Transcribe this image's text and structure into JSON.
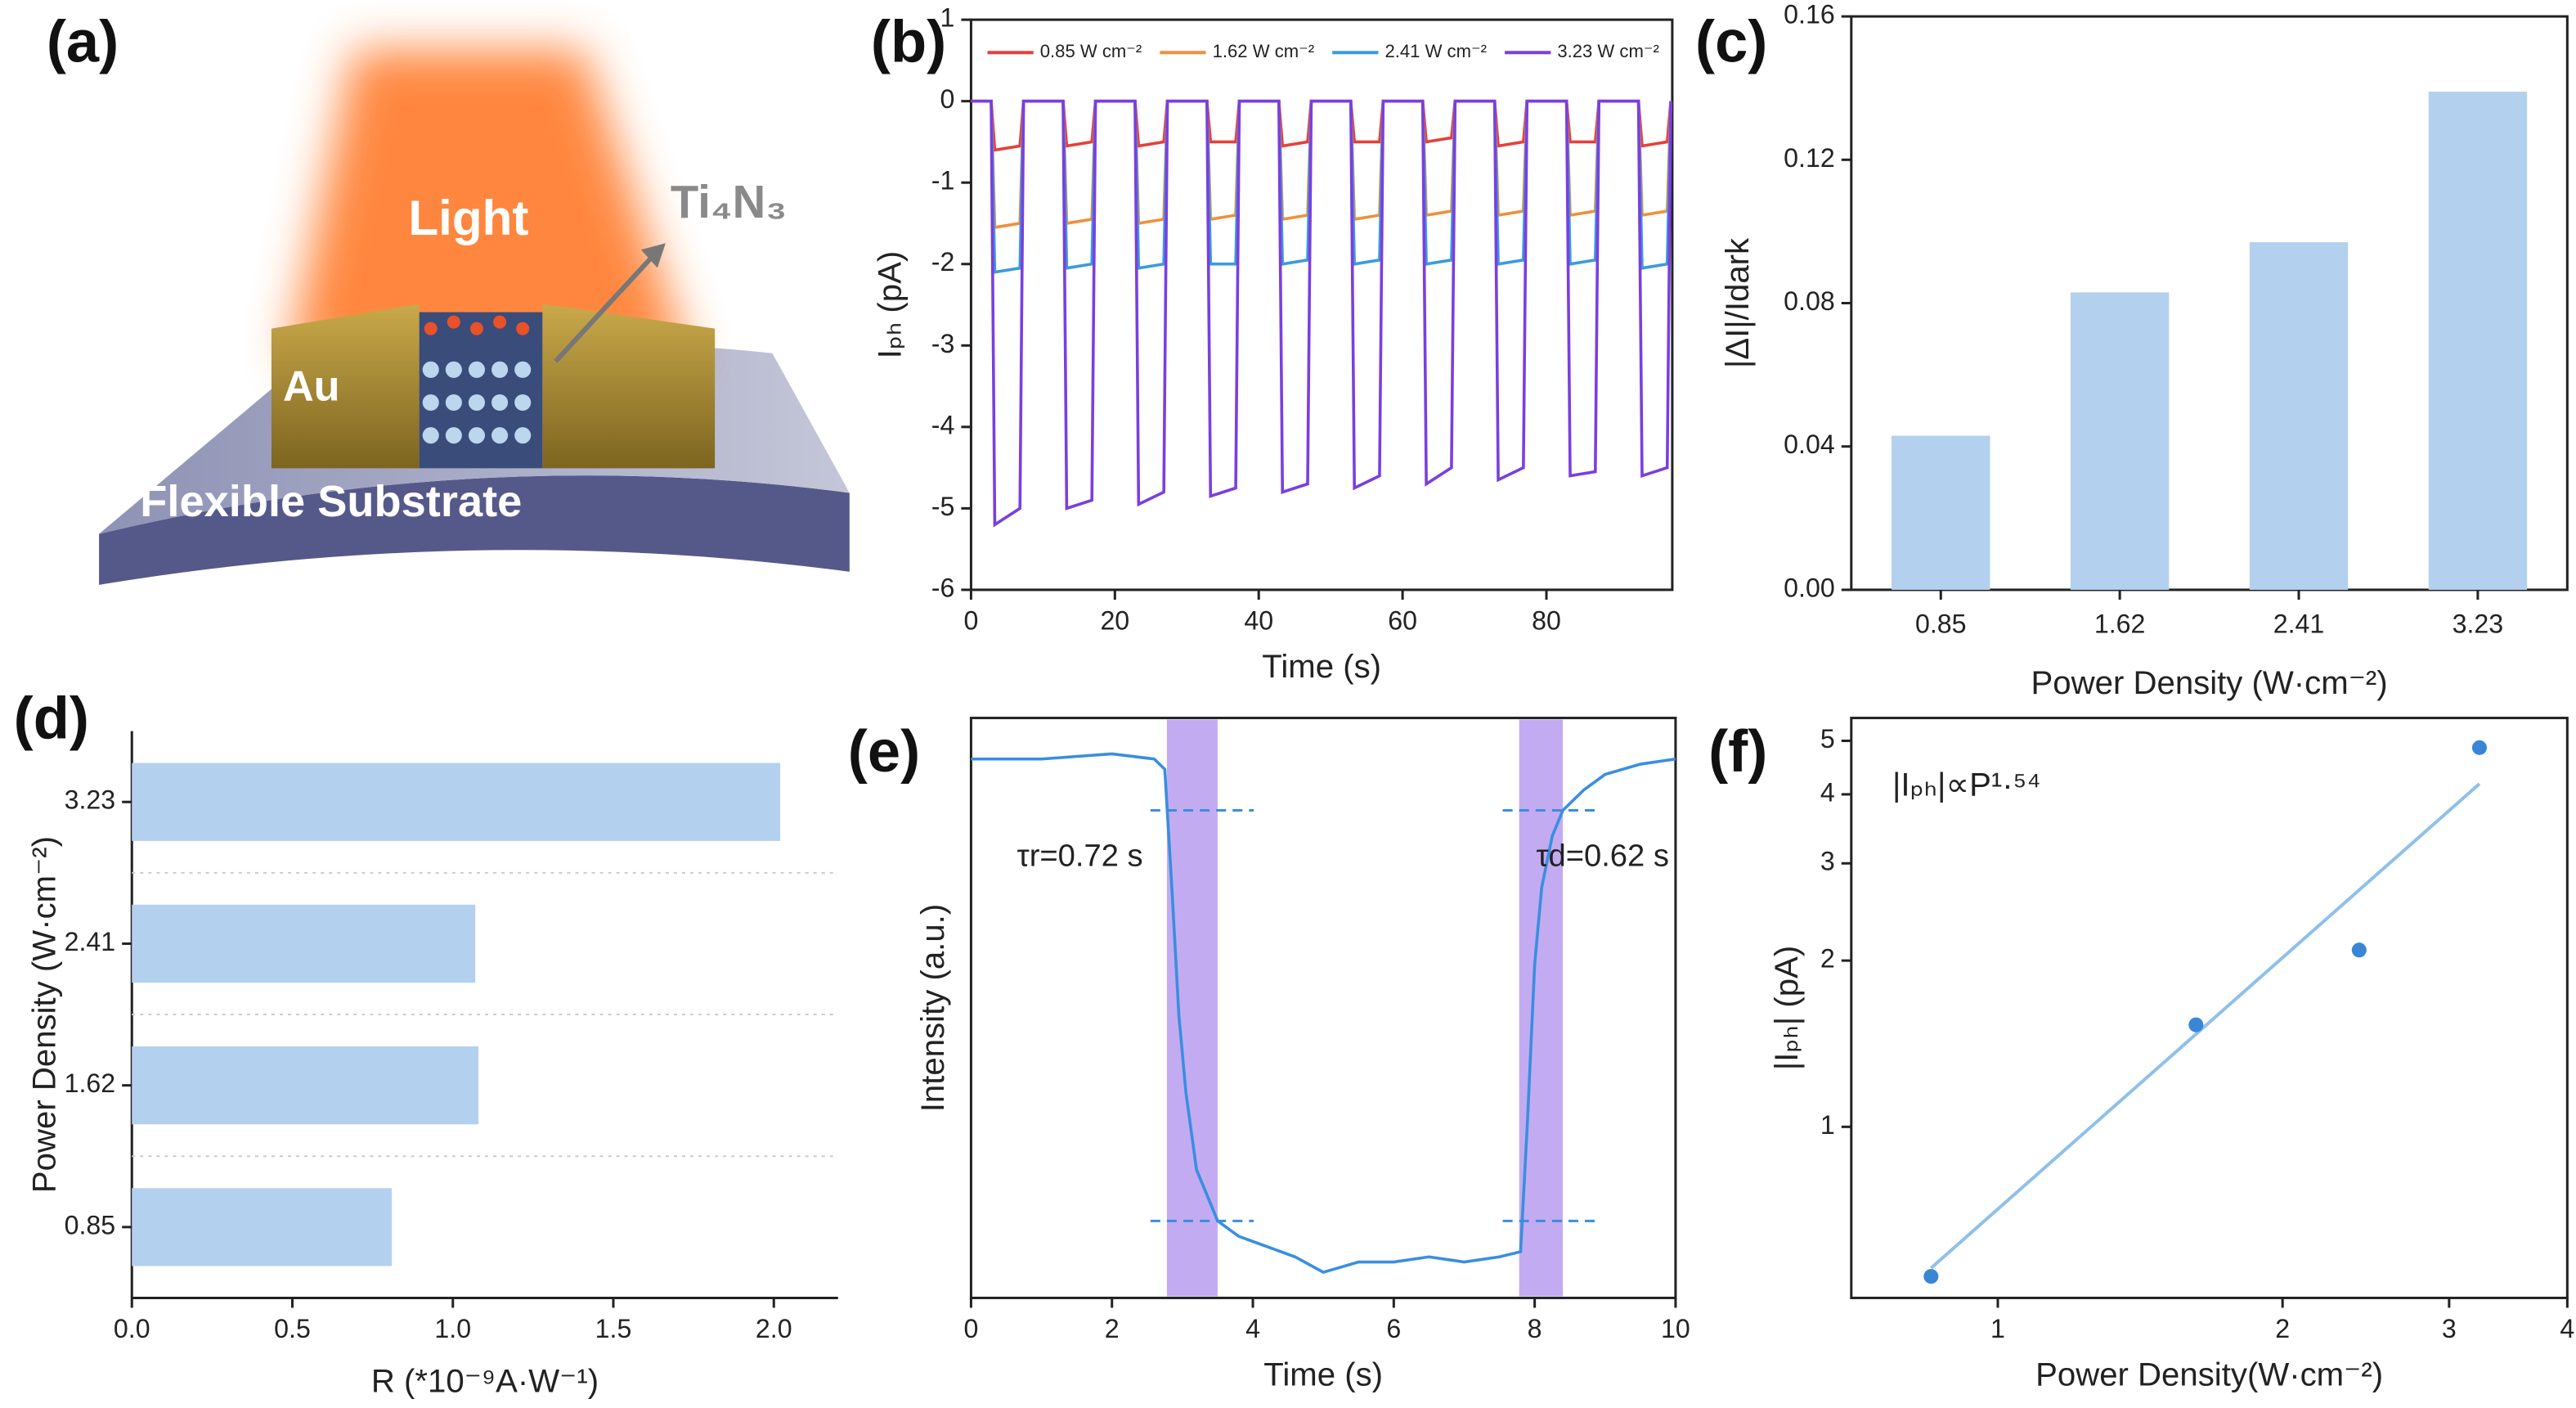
{
  "chart_data": [
    {
      "type": "diagram",
      "label": "(a)",
      "texts": [
        "Light",
        "Ti₄N₃",
        "Au",
        "Flexible Substrate"
      ]
    },
    {
      "type": "line",
      "label": "(b)",
      "x_label": "Time (s)",
      "y_label": "Iₚₕ (pA)",
      "x": [
        0,
        2.8,
        3.3,
        6.8,
        7.3,
        12.8,
        13.3,
        16.8,
        17.3,
        22.8,
        23.3,
        26.8,
        27.3,
        32.8,
        33.3,
        36.8,
        37.3,
        42.8,
        43.3,
        46.8,
        47.3,
        52.8,
        53.3,
        56.8,
        57.3,
        62.8,
        63.3,
        66.8,
        67.3,
        72.8,
        73.3,
        76.8,
        77.3,
        82.8,
        83.3,
        86.8,
        87.3,
        92.8,
        93.3,
        96.8,
        97.3
      ],
      "series": [
        {
          "name": "0.85 W cm⁻²",
          "color": "#e5403b",
          "values": [
            0,
            0,
            -0.6,
            -0.55,
            0,
            0,
            -0.55,
            -0.5,
            0,
            0,
            -0.55,
            -0.5,
            0,
            0,
            -0.5,
            -0.5,
            0,
            0,
            -0.55,
            -0.5,
            0,
            0,
            -0.5,
            -0.5,
            0,
            0,
            -0.5,
            -0.45,
            0,
            0,
            -0.55,
            -0.5,
            0,
            0,
            -0.5,
            -0.5,
            0,
            0,
            -0.55,
            -0.5,
            0
          ]
        },
        {
          "name": "1.62 W cm⁻²",
          "color": "#f0903a",
          "values": [
            0,
            0,
            -1.55,
            -1.5,
            0,
            0,
            -1.5,
            -1.45,
            0,
            0,
            -1.5,
            -1.45,
            0,
            0,
            -1.45,
            -1.4,
            0,
            0,
            -1.45,
            -1.4,
            0,
            0,
            -1.45,
            -1.4,
            0,
            0,
            -1.4,
            -1.35,
            0,
            0,
            -1.4,
            -1.35,
            0,
            0,
            -1.4,
            -1.35,
            0,
            0,
            -1.4,
            -1.35,
            0
          ]
        },
        {
          "name": "2.41 W cm⁻²",
          "color": "#3a9ae0",
          "values": [
            0,
            0,
            -2.1,
            -2.05,
            0,
            0,
            -2.05,
            -2.0,
            0,
            0,
            -2.05,
            -2.0,
            0,
            0,
            -2.0,
            -2.0,
            0,
            0,
            -2.0,
            -1.95,
            0,
            0,
            -2.0,
            -1.95,
            0,
            0,
            -2.0,
            -1.95,
            0,
            0,
            -2.0,
            -1.95,
            0,
            0,
            -2.0,
            -1.95,
            0,
            0,
            -2.05,
            -2.0,
            0
          ]
        },
        {
          "name": "3.23 W cm⁻²",
          "color": "#7a3fe0",
          "values": [
            0,
            0,
            -5.2,
            -5.0,
            0,
            0,
            -5.0,
            -4.9,
            0,
            0,
            -4.95,
            -4.8,
            0,
            0,
            -4.85,
            -4.75,
            0,
            0,
            -4.8,
            -4.7,
            0,
            0,
            -4.75,
            -4.6,
            0,
            0,
            -4.7,
            -4.5,
            0,
            0,
            -4.65,
            -4.5,
            0,
            0,
            -4.6,
            -4.55,
            0,
            0,
            -4.6,
            -4.5,
            0
          ]
        }
      ],
      "xlim": [
        0,
        97.5
      ],
      "xticks": [
        0,
        20,
        40,
        60,
        80
      ],
      "ylim": [
        -6,
        1
      ],
      "yticks": [
        -6,
        -5,
        -4,
        -3,
        -2,
        -1,
        0,
        1
      ]
    },
    {
      "type": "bar",
      "label": "(c)",
      "x_label": "Power Density (W·cm⁻²)",
      "y_label": "|ΔI|/Idark",
      "categories": [
        "0.85",
        "1.62",
        "2.41",
        "3.23"
      ],
      "values": [
        0.043,
        0.083,
        0.097,
        0.139
      ],
      "color": "#b3d1ee",
      "ylim": [
        0,
        0.16
      ],
      "yticks": [
        {
          "value": 0,
          "label": "0.00"
        },
        0.04,
        0.08,
        0.12,
        0.16
      ]
    },
    {
      "type": "hbar",
      "label": "(d)",
      "x_label": "R (*10⁻⁹A·W⁻¹)",
      "y_label": "Power Density (W·cm⁻²)",
      "categories": [
        "0.85",
        "1.62",
        "2.41",
        "3.23"
      ],
      "values": [
        0.81,
        1.08,
        1.07,
        2.02
      ],
      "color": "#b3d1ee",
      "xlim": [
        0,
        2.2
      ],
      "xticks": [
        {
          "value": 0,
          "label": "0.0"
        },
        0.5,
        {
          "value": 1,
          "label": "1.0"
        },
        1.5,
        {
          "value": 2,
          "label": "2.0"
        }
      ]
    },
    {
      "type": "line",
      "label": "(e)",
      "x_label": "Time (s)",
      "y_label": "Intensity (a.u.)",
      "x": [
        0,
        1,
        2,
        2.6,
        2.75,
        2.85,
        2.95,
        3.05,
        3.2,
        3.5,
        3.8,
        4.2,
        4.6,
        5,
        5.5,
        6,
        6.5,
        7,
        7.5,
        7.8,
        7.9,
        8.0,
        8.1,
        8.25,
        8.4,
        8.7,
        9,
        9.5,
        10
      ],
      "values": [
        1.0,
        1.0,
        1.01,
        1.0,
        0.98,
        0.75,
        0.5,
        0.35,
        0.2,
        0.1,
        0.07,
        0.05,
        0.03,
        0.0,
        0.02,
        0.02,
        0.03,
        0.02,
        0.03,
        0.04,
        0.3,
        0.6,
        0.75,
        0.85,
        0.9,
        0.94,
        0.97,
        0.99,
        1.0
      ],
      "color": "#3a8ee0",
      "shaded_regions": [
        [
          2.78,
          3.5
        ],
        [
          7.78,
          8.4
        ]
      ],
      "shade_color": "#b99cf0",
      "threshold_levels": [
        0.9,
        0.1
      ],
      "annotations": [
        "τr=0.72 s",
        "τd=0.62 s"
      ],
      "xlim": [
        0,
        10
      ],
      "xticks": [
        0,
        2,
        4,
        6,
        8,
        10
      ],
      "ylim": [
        -0.05,
        1.08
      ]
    },
    {
      "type": "scatter",
      "label": "(f)",
      "x_label": "Power Density(W·cm⁻²)",
      "y_label": "|Iₚₕ| (pA)",
      "x": [
        0.85,
        1.62,
        2.41,
        3.23
      ],
      "values": [
        0.536,
        1.53,
        2.09,
        4.86
      ],
      "color": "#3a86d6",
      "fit": {
        "x": [
          0.85,
          3.23
        ],
        "y": [
          0.555,
          4.18
        ],
        "color": "#8ec0ea"
      },
      "annotation": "|Iₚₕ|∝P¹·⁵⁴",
      "log_x": true,
      "log_y": true,
      "xlim": [
        0.7,
        4
      ],
      "xticks": [
        1,
        2,
        3,
        4
      ],
      "ylim": [
        0.49,
        5.5
      ],
      "yticks": [
        1,
        2,
        3,
        4,
        5
      ]
    }
  ]
}
